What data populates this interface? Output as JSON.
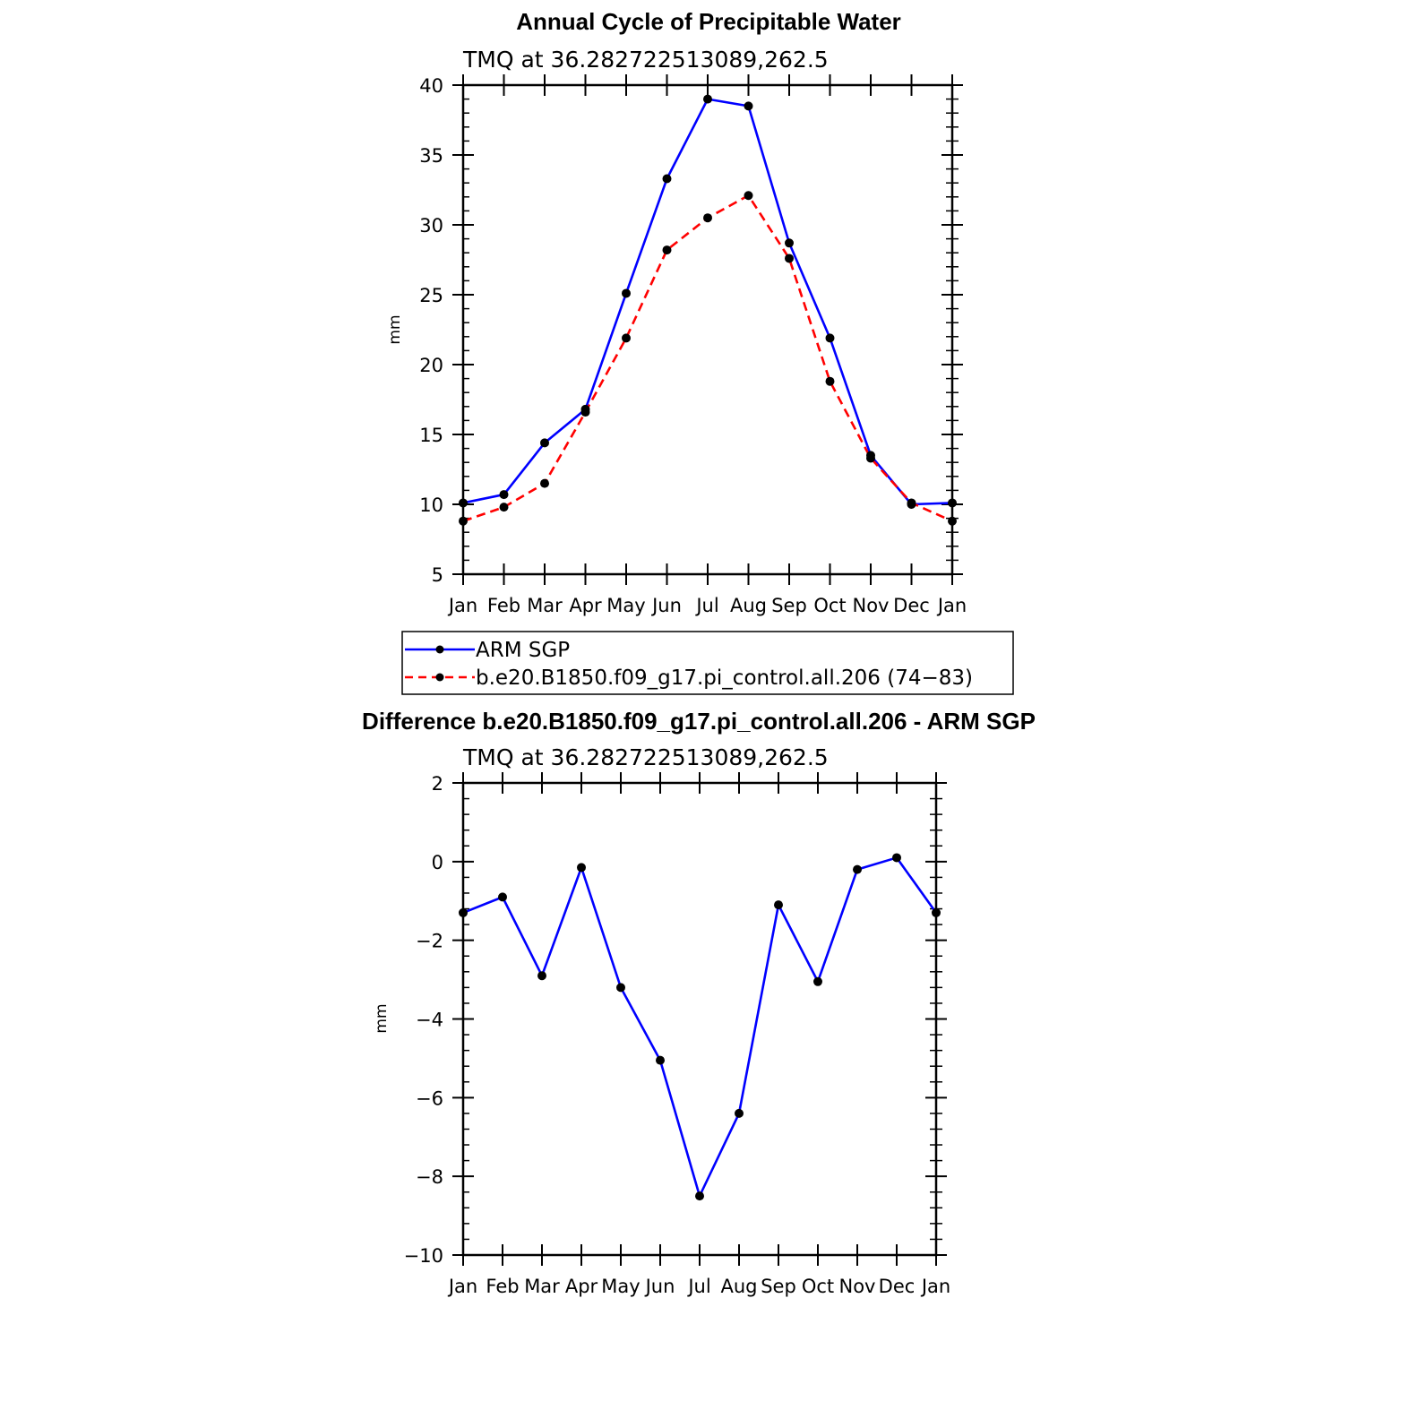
{
  "chart_data": [
    {
      "type": "line",
      "title": "Annual Cycle of Precipitable Water",
      "subtitle": "TMQ at 36.282722513089,262.5",
      "ylabel": "mm",
      "xlabel": "",
      "ylim": [
        5,
        40
      ],
      "yticks": [
        "5",
        "10",
        "15",
        "20",
        "25",
        "30",
        "35",
        "40"
      ],
      "categories": [
        "Jan",
        "Feb",
        "Mar",
        "Apr",
        "May",
        "Jun",
        "Jul",
        "Aug",
        "Sep",
        "Oct",
        "Nov",
        "Dec",
        "Jan"
      ],
      "series": [
        {
          "name": "ARM SGP",
          "color": "#0000ff",
          "dash": "solid",
          "values": [
            10.1,
            10.7,
            14.4,
            16.8,
            25.1,
            33.3,
            39.0,
            38.5,
            28.7,
            21.9,
            13.5,
            10.0,
            10.1
          ]
        },
        {
          "name": "b.e20.B1850.f09_g17.pi_control.all.206 (74−83)",
          "color": "#ff0000",
          "dash": "dashed",
          "values": [
            8.8,
            9.8,
            11.5,
            16.6,
            21.9,
            28.2,
            30.5,
            32.1,
            27.6,
            18.8,
            13.3,
            10.1,
            8.8
          ]
        }
      ],
      "legend": "below"
    },
    {
      "type": "line",
      "title": "Difference b.e20.B1850.f09_g17.pi_control.all.206 - ARM SGP",
      "subtitle": "TMQ at 36.282722513089,262.5",
      "ylabel": "mm",
      "xlabel": "",
      "ylim": [
        -10,
        2
      ],
      "yticks": [
        "−10",
        "−8",
        "−6",
        "−4",
        "−2",
        "0",
        "2"
      ],
      "categories": [
        "Jan",
        "Feb",
        "Mar",
        "Apr",
        "May",
        "Jun",
        "Jul",
        "Aug",
        "Sep",
        "Oct",
        "Nov",
        "Dec",
        "Jan"
      ],
      "series": [
        {
          "name": "Difference",
          "color": "#0000ff",
          "dash": "solid",
          "values": [
            -1.3,
            -0.9,
            -2.9,
            -0.15,
            -3.2,
            -5.05,
            -8.5,
            -6.4,
            -1.1,
            -3.05,
            -0.2,
            0.1,
            -1.3
          ]
        }
      ]
    }
  ]
}
